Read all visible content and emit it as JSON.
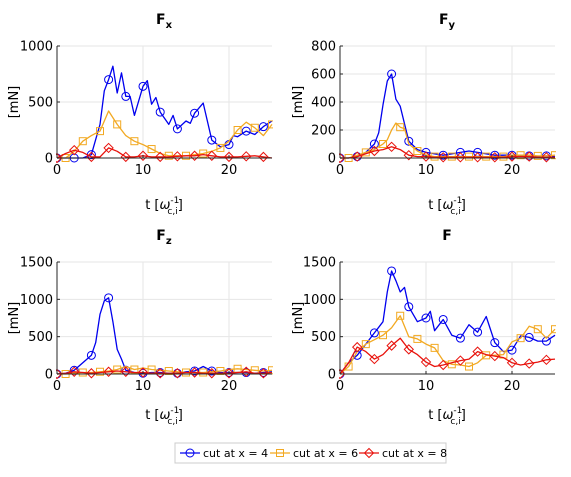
{
  "colors": {
    "s4": "#0000ee",
    "s6": "#f2a922",
    "s8": "#e8120c"
  },
  "legend": {
    "placement": "bottom-center",
    "entries": [
      "cut at x = 4",
      "cut at x = 6",
      "cut at x = 8"
    ]
  },
  "chart_data": [
    {
      "type": "line",
      "title_main": "F",
      "title_sub": "x",
      "ylabel": "[mN]",
      "xlabel_main": "t [",
      "xlabel_omega": "ω",
      "xlabel_sup": "-1",
      "xlabel_sub": "c,i",
      "xlabel_end": "]",
      "xlim": [
        0,
        25
      ],
      "ylim": [
        0,
        1000
      ],
      "xticks": [
        0,
        10,
        20
      ],
      "yticks": [
        0,
        500,
        1000
      ],
      "grid": true,
      "series": [
        {
          "name": "cut at x = 4",
          "x": [
            0,
            1,
            2,
            3,
            4,
            5,
            5.5,
            6,
            6.5,
            7,
            7.5,
            8,
            8.5,
            9,
            10,
            10.5,
            11,
            11.5,
            12,
            13,
            13.5,
            14,
            15,
            15.5,
            16,
            17,
            18,
            19,
            20,
            20.5,
            21,
            22,
            23,
            24,
            25
          ],
          "y": [
            0,
            0,
            0,
            0,
            30,
            300,
            600,
            700,
            820,
            580,
            760,
            550,
            550,
            380,
            640,
            690,
            480,
            540,
            410,
            300,
            380,
            260,
            330,
            310,
            400,
            490,
            160,
            100,
            120,
            200,
            190,
            240,
            210,
            280,
            330
          ]
        },
        {
          "name": "cut at x = 6",
          "x": [
            0,
            1,
            2,
            3,
            4,
            5,
            6,
            7,
            8,
            9,
            10,
            11,
            12,
            13,
            14,
            15,
            16,
            17,
            18,
            19,
            20,
            21,
            22,
            23,
            24,
            25
          ],
          "y": [
            0,
            0,
            60,
            150,
            200,
            240,
            420,
            300,
            200,
            150,
            120,
            80,
            40,
            20,
            20,
            20,
            30,
            40,
            60,
            90,
            150,
            250,
            320,
            270,
            200,
            300
          ]
        },
        {
          "name": "cut at x = 8",
          "x": [
            0,
            1,
            2,
            3,
            4,
            5,
            6,
            7,
            8,
            9,
            10,
            11,
            12,
            13,
            14,
            15,
            16,
            17,
            18,
            19,
            20,
            21,
            22,
            23,
            24,
            25
          ],
          "y": [
            0,
            40,
            70,
            50,
            10,
            10,
            90,
            60,
            10,
            10,
            20,
            10,
            10,
            10,
            15,
            20,
            20,
            30,
            20,
            10,
            10,
            10,
            15,
            20,
            10,
            0
          ]
        }
      ]
    },
    {
      "type": "line",
      "title_main": "F",
      "title_sub": "y",
      "ylabel": "[mN]",
      "xlabel_main": "t [",
      "xlabel_omega": "ω",
      "xlabel_sup": "-1",
      "xlabel_sub": "c,i",
      "xlabel_end": "]",
      "xlim": [
        0,
        25
      ],
      "ylim": [
        0,
        800
      ],
      "xticks": [
        0,
        10,
        20
      ],
      "yticks": [
        0,
        200,
        400,
        600,
        800
      ],
      "grid": true,
      "series": [
        {
          "name": "cut at x = 4",
          "x": [
            0,
            1,
            2,
            3,
            4,
            4.5,
            5,
            5.5,
            6,
            6.5,
            7,
            8,
            9,
            10,
            11,
            12,
            13,
            14,
            15,
            16,
            17,
            18,
            19,
            20,
            21,
            22,
            23,
            24,
            25
          ],
          "y": [
            0,
            0,
            10,
            40,
            100,
            180,
            380,
            550,
            600,
            420,
            370,
            120,
            60,
            40,
            30,
            20,
            30,
            40,
            50,
            40,
            30,
            20,
            20,
            20,
            15,
            15,
            10,
            15,
            10
          ]
        },
        {
          "name": "cut at x = 6",
          "x": [
            0,
            1,
            2,
            3,
            4,
            5,
            5.5,
            6,
            6.5,
            7,
            7.5,
            8,
            9,
            10,
            11,
            12,
            13,
            14,
            15,
            16,
            17,
            18,
            19,
            20,
            21,
            22,
            23,
            24,
            25
          ],
          "y": [
            0,
            0,
            20,
            40,
            60,
            100,
            130,
            200,
            250,
            220,
            210,
            100,
            50,
            20,
            10,
            10,
            10,
            10,
            10,
            10,
            10,
            10,
            10,
            20,
            20,
            20,
            15,
            15,
            20
          ]
        },
        {
          "name": "cut at x = 8",
          "x": [
            0,
            1,
            2,
            3,
            4,
            5,
            6,
            7,
            8,
            9,
            10,
            11,
            12,
            13,
            14,
            15,
            16,
            17,
            18,
            19,
            20,
            21,
            22,
            23,
            24,
            25
          ],
          "y": [
            0,
            0,
            10,
            30,
            50,
            60,
            80,
            60,
            20,
            10,
            10,
            5,
            5,
            5,
            5,
            5,
            5,
            5,
            5,
            5,
            10,
            10,
            10,
            5,
            5,
            5
          ]
        }
      ]
    },
    {
      "type": "line",
      "title_main": "F",
      "title_sub": "z",
      "ylabel": "[mN]",
      "xlabel_main": "t [",
      "xlabel_omega": "ω",
      "xlabel_sup": "-1",
      "xlabel_sub": "c,i",
      "xlabel_end": "]",
      "xlim": [
        0,
        25
      ],
      "ylim": [
        0,
        1500
      ],
      "xticks": [
        0,
        10,
        20
      ],
      "yticks": [
        0,
        500,
        1000,
        1500
      ],
      "grid": true,
      "series": [
        {
          "name": "cut at x = 4",
          "x": [
            0,
            1,
            2,
            3,
            4,
            4.5,
            5,
            5.5,
            6,
            6.5,
            7,
            7.5,
            8,
            9,
            10,
            11,
            12,
            13,
            14,
            15,
            16,
            17,
            18,
            19,
            20,
            21,
            22,
            23,
            24,
            25
          ],
          "y": [
            0,
            10,
            50,
            150,
            250,
            420,
            800,
            980,
            1020,
            700,
            330,
            200,
            50,
            20,
            10,
            20,
            20,
            10,
            10,
            30,
            40,
            100,
            40,
            20,
            20,
            20,
            20,
            10,
            20,
            30
          ]
        },
        {
          "name": "cut at x = 6",
          "x": [
            0,
            1,
            2,
            3,
            4,
            5,
            6,
            7,
            8,
            9,
            10,
            11,
            12,
            13,
            14,
            15,
            16,
            17,
            18,
            19,
            20,
            21,
            22,
            23,
            24,
            25
          ],
          "y": [
            0,
            0,
            10,
            20,
            20,
            30,
            40,
            60,
            100,
            60,
            80,
            60,
            50,
            40,
            30,
            20,
            20,
            20,
            30,
            40,
            60,
            70,
            60,
            50,
            40,
            50
          ]
        },
        {
          "name": "cut at x = 8",
          "x": [
            0,
            1,
            2,
            3,
            4,
            5,
            6,
            7,
            8,
            9,
            10,
            11,
            12,
            13,
            14,
            15,
            16,
            17,
            18,
            19,
            20,
            21,
            22,
            23,
            24,
            25
          ],
          "y": [
            0,
            10,
            30,
            20,
            10,
            20,
            30,
            40,
            30,
            20,
            20,
            10,
            10,
            10,
            10,
            20,
            20,
            10,
            10,
            10,
            10,
            20,
            30,
            10,
            10,
            20
          ]
        }
      ]
    },
    {
      "type": "line",
      "title_main": "F",
      "title_sub": "",
      "ylabel": "[mN]",
      "xlabel_main": "t [",
      "xlabel_omega": "ω",
      "xlabel_sup": "-1",
      "xlabel_sub": "c,i",
      "xlabel_end": "]",
      "xlim": [
        0,
        25
      ],
      "ylim": [
        0,
        1500
      ],
      "xticks": [
        0,
        10,
        20
      ],
      "yticks": [
        0,
        500,
        1000,
        1500
      ],
      "grid": true,
      "series": [
        {
          "name": "cut at x = 4",
          "x": [
            0,
            1,
            2,
            3,
            4,
            5,
            5.5,
            6,
            6.5,
            7,
            7.5,
            8,
            9,
            10,
            10.5,
            11,
            12,
            13,
            14,
            15,
            16,
            17,
            18,
            19,
            20,
            21,
            22,
            23,
            24,
            25
          ],
          "y": [
            0,
            150,
            250,
            400,
            550,
            700,
            1100,
            1380,
            1250,
            1100,
            1160,
            900,
            700,
            750,
            840,
            580,
            730,
            520,
            480,
            660,
            560,
            770,
            420,
            300,
            320,
            510,
            490,
            440,
            440,
            520
          ]
        },
        {
          "name": "cut at x = 6",
          "x": [
            0,
            1,
            2,
            3,
            4,
            5,
            6,
            7,
            8,
            9,
            10,
            11,
            12,
            13,
            14,
            15,
            16,
            17,
            18,
            19,
            20,
            21,
            22,
            23,
            24,
            25
          ],
          "y": [
            0,
            100,
            300,
            400,
            460,
            520,
            620,
            780,
            500,
            470,
            400,
            350,
            180,
            130,
            120,
            100,
            150,
            250,
            250,
            260,
            430,
            480,
            640,
            600,
            480,
            600
          ]
        },
        {
          "name": "cut at x = 8",
          "x": [
            0,
            1,
            2,
            3,
            4,
            5,
            6,
            7,
            8,
            9,
            10,
            11,
            12,
            13,
            14,
            15,
            16,
            17,
            18,
            19,
            20,
            21,
            22,
            23,
            24,
            25
          ],
          "y": [
            0,
            150,
            360,
            300,
            200,
            260,
            380,
            480,
            330,
            260,
            160,
            100,
            120,
            150,
            180,
            200,
            300,
            260,
            240,
            220,
            150,
            120,
            140,
            160,
            190,
            200
          ]
        }
      ]
    }
  ]
}
